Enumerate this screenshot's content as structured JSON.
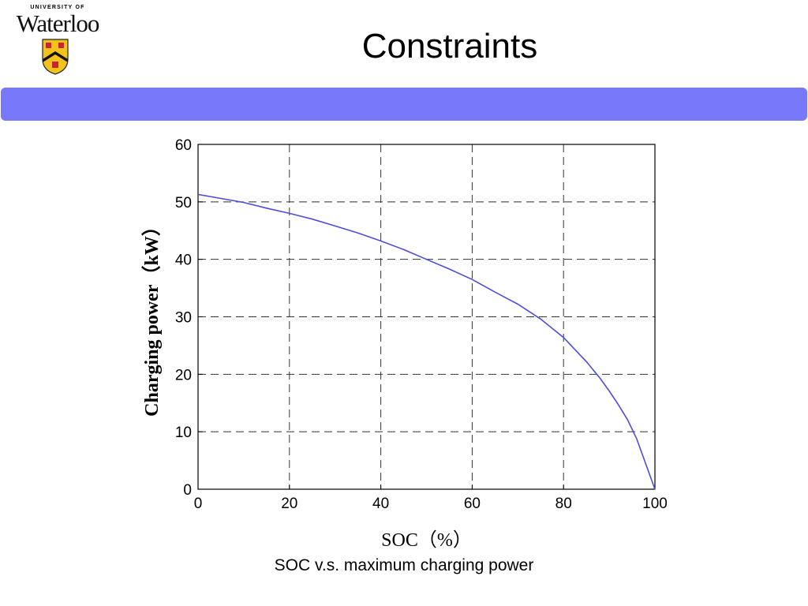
{
  "logo": {
    "top_text": "UNIVERSITY OF",
    "word": "Waterloo",
    "shield_icon": "university-crest-icon",
    "colors": {
      "shield_fill": "#f2c21d",
      "chevron": "#111111",
      "lions": "#c9262b"
    }
  },
  "slide": {
    "title": "Constraints",
    "bar_color": "#7878fb",
    "caption": "SOC v.s. maximum charging power"
  },
  "chart_data": {
    "type": "line",
    "xlabel": "SOC（%）",
    "ylabel": "Charging power（kW）",
    "xlim": [
      0,
      100
    ],
    "ylim": [
      0,
      60
    ],
    "xticks": [
      0,
      20,
      40,
      60,
      80,
      100
    ],
    "yticks": [
      0,
      10,
      20,
      30,
      40,
      50,
      60
    ],
    "grid": true,
    "grid_style": "dashed",
    "series": [
      {
        "color": "#4d4dde",
        "x": [
          0,
          5,
          10,
          15,
          20,
          25,
          30,
          35,
          40,
          45,
          50,
          55,
          60,
          65,
          70,
          75,
          80,
          85,
          88,
          90,
          92,
          94,
          96,
          98,
          100
        ],
        "y": [
          51.3,
          50.6,
          49.9,
          48.9,
          48.0,
          47.0,
          45.8,
          44.6,
          43.2,
          41.7,
          40.0,
          38.3,
          36.5,
          34.3,
          32.2,
          29.6,
          26.4,
          22.2,
          19.3,
          17.1,
          14.7,
          12.1,
          8.8,
          4.4,
          0.0
        ]
      }
    ]
  }
}
